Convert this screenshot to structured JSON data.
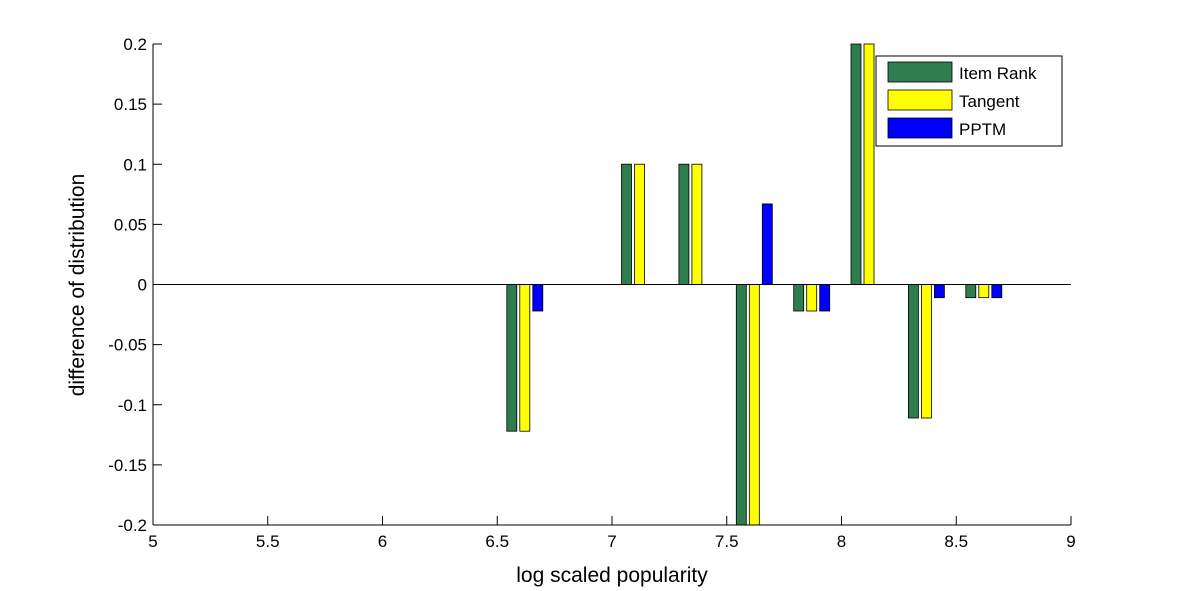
{
  "chart_data": {
    "type": "bar",
    "title": "",
    "xlabel": "log scaled popularity",
    "ylabel": "difference of distribution",
    "xlim": [
      5,
      9
    ],
    "ylim": [
      -0.2,
      0.2
    ],
    "xticks": [
      "5",
      "5.5",
      "6",
      "6.5",
      "7",
      "7.5",
      "8",
      "8.5",
      "9"
    ],
    "yticks": [
      "-0.2",
      "-0.15",
      "-0.1",
      "-0.05",
      "0",
      "0.05",
      "0.1",
      "0.15",
      "0.2"
    ],
    "x": [
      6.62,
      7.12,
      7.37,
      7.62,
      7.87,
      8.12,
      8.37,
      8.62
    ],
    "series": [
      {
        "name": "Item Rank",
        "color": "#2e7d4f",
        "values": [
          -0.122,
          0.1,
          0.1,
          -0.2,
          -0.022,
          0.2,
          -0.111,
          -0.011
        ]
      },
      {
        "name": "Tangent",
        "color": "#ffff00",
        "values": [
          -0.122,
          0.1,
          0.1,
          -0.2,
          -0.022,
          0.2,
          -0.111,
          -0.011
        ]
      },
      {
        "name": "PPTM",
        "color": "#0000ff",
        "values": [
          -0.022,
          0,
          0,
          0.067,
          -0.022,
          0,
          -0.011,
          -0.011
        ]
      }
    ],
    "legend": "top-right",
    "grid": false,
    "zero_line": true
  }
}
